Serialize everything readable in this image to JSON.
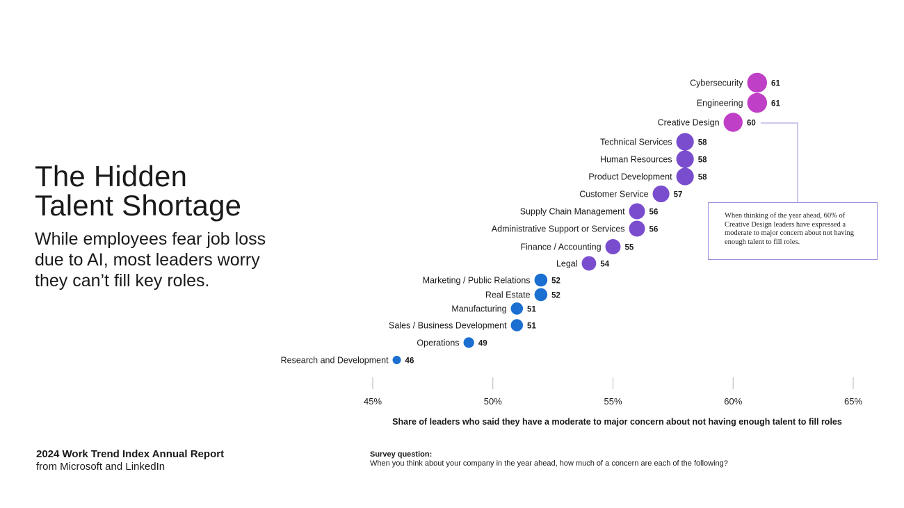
{
  "page": {
    "title_line1": "The Hidden",
    "title_line2": "Talent Shortage",
    "subtitle": "While employees fear job loss due to AI, most leaders worry they can’t fill key roles.",
    "report_title": "2024 Work Trend Index Annual Report",
    "report_source": "from Microsoft and LinkedIn",
    "survey_label": "Survey question:",
    "survey_question": "When you think about your company in the year ahead, how much of a concern are each of the following?",
    "callout": "When thinking of the year ahead, 60% of Creative Design leaders have expressed a moderate to major concern about not having enough talent to fill roles."
  },
  "chart_data": {
    "type": "scatter",
    "xlabel": "Share of leaders who said they have a moderate to major concern about not having enough talent to fill roles",
    "ylabel": "",
    "xlim": [
      45,
      65
    ],
    "x_ticks": [
      "45%",
      "50%",
      "55%",
      "60%",
      "65%"
    ],
    "x_tick_values": [
      45,
      50,
      55,
      60,
      65
    ],
    "grid": false,
    "highlight_category": "Creative Design",
    "colors": {
      "high": "#bf3fc7",
      "mid": "#7a4dcf",
      "low": "#1a6fd0",
      "callout_line": "#9c8fe0"
    },
    "points": [
      {
        "category": "Cybersecurity",
        "value": 61
      },
      {
        "category": "Engineering",
        "value": 61
      },
      {
        "category": "Creative Design",
        "value": 60
      },
      {
        "category": "Technical Services",
        "value": 58
      },
      {
        "category": "Human Resources",
        "value": 58
      },
      {
        "category": "Product Development",
        "value": 58
      },
      {
        "category": "Customer Service",
        "value": 57
      },
      {
        "category": "Supply Chain Management",
        "value": 56
      },
      {
        "category": "Administrative Support or Services",
        "value": 56
      },
      {
        "category": "Finance / Accounting",
        "value": 55
      },
      {
        "category": "Legal",
        "value": 54
      },
      {
        "category": "Marketing / Public Relations",
        "value": 52
      },
      {
        "category": "Real Estate",
        "value": 52
      },
      {
        "category": "Manufacturing",
        "value": 51
      },
      {
        "category": "Sales / Business Development",
        "value": 51
      },
      {
        "category": "Operations",
        "value": 49
      },
      {
        "category": "Research and Development",
        "value": 46
      }
    ]
  }
}
